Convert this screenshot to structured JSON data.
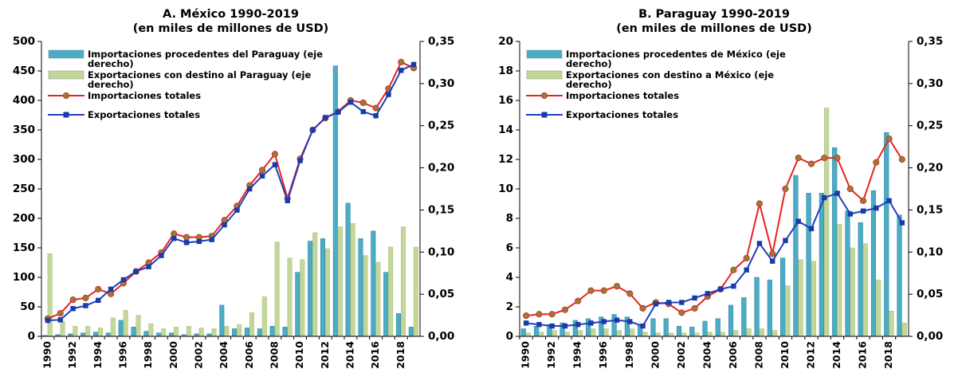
{
  "chart_data": [
    {
      "type": "bar_line",
      "title": "A. México 1990-2019",
      "subtitle": "(en miles de millones de USD)",
      "categories": [
        "1990",
        null,
        "1992",
        null,
        "1994",
        null,
        "1996",
        null,
        "1998",
        null,
        "2000",
        null,
        "2002",
        null,
        "2004",
        null,
        "2006",
        null,
        "2008",
        null,
        "2010",
        null,
        "2012",
        null,
        "2014",
        null,
        "2016",
        null,
        "2018",
        null
      ],
      "ylim": [
        0,
        500
      ],
      "yticks": [
        0,
        50,
        100,
        150,
        200,
        250,
        300,
        350,
        400,
        450,
        500
      ],
      "y2lim": [
        0,
        0.35
      ],
      "y2ticks": [
        {
          "value": 0,
          "label": "0,00"
        },
        {
          "value": 0.05,
          "label": "0,05"
        },
        {
          "value": 0.1,
          "label": "0,10"
        },
        {
          "value": 0.15,
          "label": "0,15"
        },
        {
          "value": 0.2,
          "label": "0,20"
        },
        {
          "value": 0.25,
          "label": "0,25"
        },
        {
          "value": 0.3,
          "label": "0,30"
        },
        {
          "value": 0.35,
          "label": "0,35"
        }
      ],
      "legend": "upper left",
      "grid": false,
      "series": [
        {
          "name": "Importaciones procedentes del Paraguay (eje derecho)",
          "kind": "bar",
          "axis": "y2",
          "color": "#4aacc5",
          "values": [
            0.001,
            0.002,
            0.003,
            0.004,
            0.005,
            0.004,
            0.019,
            0.011,
            0.006,
            0.004,
            0.004,
            0.002,
            0.003,
            0.003,
            0.037,
            0.009,
            0.01,
            0.009,
            0.012,
            0.011,
            0.076,
            0.113,
            0.116,
            0.321,
            0.158,
            0.116,
            0.125,
            0.076,
            0.027,
            0.011
          ]
        },
        {
          "name": "Exportaciones con destino al Paraguay (eje derecho)",
          "kind": "bar",
          "axis": "y2",
          "color": "#c4d79b",
          "values": [
            0.098,
            0.018,
            0.012,
            0.012,
            0.01,
            0.022,
            0.031,
            0.025,
            0.015,
            0.009,
            0.011,
            0.012,
            0.01,
            0.009,
            0.012,
            0.014,
            0.028,
            0.047,
            0.112,
            0.093,
            0.091,
            0.123,
            0.104,
            0.13,
            0.134,
            0.096,
            0.088,
            0.106,
            0.13,
            0.106
          ]
        },
        {
          "name": "Importaciones totales",
          "kind": "line",
          "marker": "circle",
          "color": "#e8221e",
          "marker_color": "#9c7a36",
          "values": [
            30,
            39,
            62,
            65,
            80,
            72,
            90,
            110,
            125,
            142,
            174,
            168,
            168,
            170,
            197,
            221,
            256,
            282,
            309,
            234,
            301,
            350,
            370,
            381,
            400,
            396,
            387,
            420,
            465,
            455
          ]
        },
        {
          "name": "Exportaciones totales",
          "kind": "line",
          "marker": "square",
          "color": "#1f3fbf",
          "marker_color": "#1a3aa8",
          "values": [
            27,
            28,
            47,
            52,
            61,
            80,
            96,
            110,
            118,
            137,
            166,
            159,
            161,
            164,
            189,
            214,
            250,
            272,
            291,
            230,
            298,
            350,
            371,
            380,
            397,
            381,
            374,
            410,
            451,
            461
          ]
        }
      ]
    },
    {
      "type": "bar_line",
      "title": "B. Paraguay 1990-2019",
      "subtitle": "(en miles de millones de USD)",
      "categories": [
        "1990",
        null,
        "1992",
        null,
        "1994",
        null,
        "1996",
        null,
        "1998",
        null,
        "2000",
        null,
        "2002",
        null,
        "2004",
        null,
        "2006",
        null,
        "2008",
        null,
        "2010",
        null,
        "2012",
        null,
        "2014",
        null,
        "2016",
        null,
        "2018",
        null
      ],
      "ylim": [
        0,
        20
      ],
      "yticks": [
        0,
        2,
        4,
        6,
        8,
        10,
        12,
        14,
        16,
        18,
        20
      ],
      "y2lim": [
        0,
        0.35
      ],
      "y2ticks": [
        {
          "value": 0,
          "label": "0,00"
        },
        {
          "value": 0.05,
          "label": "0,05"
        },
        {
          "value": 0.1,
          "label": "0,10"
        },
        {
          "value": 0.15,
          "label": "0,15"
        },
        {
          "value": 0.2,
          "label": "0,20"
        },
        {
          "value": 0.25,
          "label": "0,25"
        },
        {
          "value": 0.3,
          "label": "0,30"
        },
        {
          "value": 0.35,
          "label": "0,35"
        }
      ],
      "legend": "upper left",
      "grid": false,
      "series": [
        {
          "name": "Importaciones procedentes de México (eje derecho)",
          "kind": "bar",
          "axis": "y2",
          "color": "#4aacc5",
          "values": [
            0.009,
            0.012,
            0.014,
            0.016,
            0.019,
            0.021,
            0.023,
            0.026,
            0.023,
            0.014,
            0.021,
            0.021,
            0.012,
            0.011,
            0.018,
            0.021,
            0.037,
            0.046,
            0.07,
            0.067,
            0.093,
            0.191,
            0.17,
            0.17,
            0.224,
            0.149,
            0.135,
            0.173,
            0.242,
            0.144
          ]
        },
        {
          "name": "Exportaciones con destino a México (eje derecho)",
          "kind": "bar",
          "axis": "y2",
          "color": "#c4d79b",
          "values": [
            0.004,
            0.005,
            0.007,
            0.005,
            0.007,
            0.009,
            0.009,
            0.007,
            0.009,
            0.005,
            0.004,
            0.004,
            0.004,
            0.004,
            0.005,
            0.005,
            0.007,
            0.009,
            0.009,
            0.007,
            0.06,
            0.091,
            0.089,
            0.271,
            0.133,
            0.105,
            0.11,
            0.067,
            0.03,
            0.016
          ]
        },
        {
          "name": "Importaciones totales",
          "kind": "line",
          "marker": "circle",
          "color": "#e8221e",
          "marker_color": "#9c7a36",
          "values": [
            1.4,
            1.5,
            1.5,
            1.8,
            2.4,
            3.1,
            3.1,
            3.4,
            2.9,
            1.9,
            2.3,
            2.2,
            1.6,
            1.9,
            2.7,
            3.2,
            4.5,
            5.3,
            9.0,
            5.6,
            10.0,
            12.1,
            11.7,
            12.1,
            12.1,
            10.0,
            9.2,
            11.8,
            13.4,
            12.0
          ]
        },
        {
          "name": "Exportaciones totales",
          "kind": "line",
          "marker": "square",
          "color": "#1f3fbf",
          "marker_color": "#1a3aa8",
          "values": [
            0.9,
            0.8,
            0.7,
            0.7,
            0.8,
            0.9,
            1.0,
            1.1,
            1.0,
            0.7,
            2.2,
            2.3,
            2.3,
            2.6,
            2.9,
            3.2,
            3.4,
            4.5,
            6.3,
            5.1,
            6.5,
            7.8,
            7.3,
            9.4,
            9.7,
            8.3,
            8.5,
            8.7,
            9.2,
            7.7
          ]
        }
      ]
    }
  ]
}
